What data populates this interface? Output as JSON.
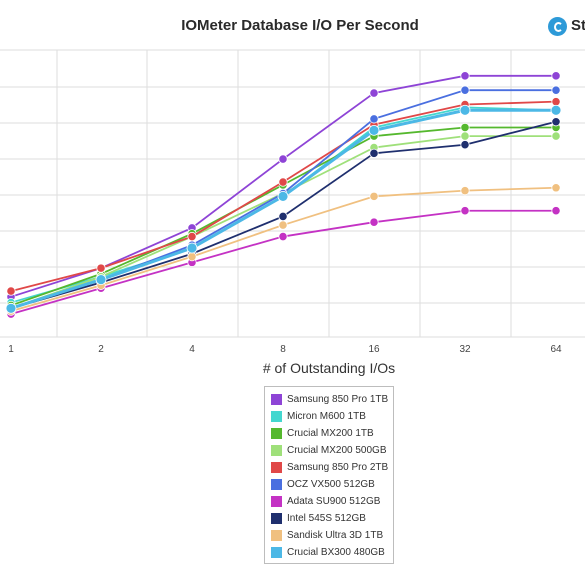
{
  "title": "IOMeter Database I/O Per Second",
  "brand": {
    "text": "St",
    "icon": "storagereview-logo-icon",
    "color": "#2d9ad8"
  },
  "chart_data": {
    "type": "line",
    "title": "IOMeter Database I/O Per Second",
    "xlabel": "# of Outstanding I/Os",
    "ylabel": "",
    "x": [
      "1",
      "2",
      "4",
      "8",
      "16",
      "32",
      "64"
    ],
    "y_axis_labels_visible": false,
    "grid": true,
    "legend_position": "bottom-center",
    "series": [
      {
        "name": "Samsung 850 Pro 1TB",
        "color": "#8e44d6",
        "values": [
          0.14,
          0.24,
          0.38,
          0.62,
          0.85,
          0.91,
          0.91
        ]
      },
      {
        "name": "Micron M600 1TB",
        "color": "#44d7cf",
        "values": [
          0.12,
          0.21,
          0.31,
          0.49,
          0.73,
          0.8,
          0.79
        ]
      },
      {
        "name": "Crucial MX200 1TB",
        "color": "#55b82e",
        "values": [
          0.11,
          0.22,
          0.36,
          0.53,
          0.7,
          0.73,
          0.73
        ]
      },
      {
        "name": "Crucial MX200 500GB",
        "color": "#9fe07a",
        "values": [
          0.1,
          0.21,
          0.35,
          0.5,
          0.66,
          0.7,
          0.7
        ]
      },
      {
        "name": "Samsung 850 Pro 2TB",
        "color": "#e04848",
        "values": [
          0.16,
          0.24,
          0.35,
          0.54,
          0.74,
          0.81,
          0.82
        ]
      },
      {
        "name": "OCZ VX500 512GB",
        "color": "#4a6fe0",
        "values": [
          0.1,
          0.2,
          0.32,
          0.5,
          0.76,
          0.86,
          0.86
        ]
      },
      {
        "name": "Adata SU900 512GB",
        "color": "#c432c4",
        "values": [
          0.08,
          0.17,
          0.26,
          0.35,
          0.4,
          0.44,
          0.44
        ]
      },
      {
        "name": "Intel 545S 512GB",
        "color": "#1f2f6e",
        "values": [
          0.1,
          0.19,
          0.29,
          0.42,
          0.64,
          0.67,
          0.75
        ]
      },
      {
        "name": "Sandisk Ultra 3D 1TB",
        "color": "#f0c080",
        "values": [
          0.09,
          0.18,
          0.28,
          0.39,
          0.49,
          0.51,
          0.52
        ]
      },
      {
        "name": "Crucial BX300 480GB",
        "color": "#4cb8e6",
        "values": [
          0.1,
          0.2,
          0.31,
          0.49,
          0.72,
          0.79,
          0.79
        ]
      }
    ]
  }
}
